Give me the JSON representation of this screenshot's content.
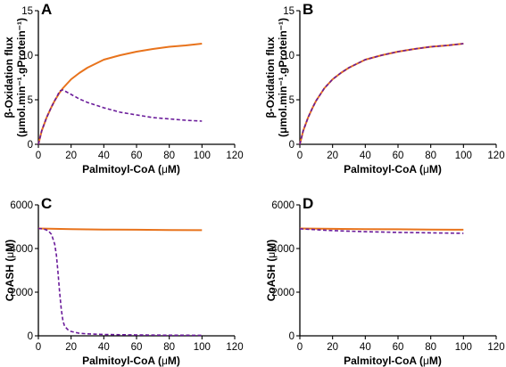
{
  "colors": {
    "orange": "#e8731c",
    "purple": "#6a1b9a",
    "axis": "#000000"
  },
  "chart_data": [
    {
      "panel": "A",
      "type": "line",
      "xlabel_parts": [
        "Palmitoyl-CoA (",
        "μ",
        "M)"
      ],
      "ylabel_line1": "β-Oxidation flux",
      "ylabel_line2": "(μmol.min⁻¹.gProtein⁻¹)",
      "xlim": [
        0,
        120
      ],
      "ylim": [
        0,
        15
      ],
      "xticks": [
        0,
        20,
        40,
        60,
        80,
        100,
        120
      ],
      "yticks": [
        0,
        5,
        10,
        15
      ],
      "series": [
        {
          "color": "#e8731c",
          "dashed": false,
          "x": [
            0,
            2,
            5,
            8,
            10,
            13,
            15,
            20,
            25,
            30,
            40,
            50,
            60,
            70,
            80,
            90,
            100
          ],
          "y": [
            0,
            1.5,
            3.0,
            4.2,
            4.9,
            5.8,
            6.3,
            7.3,
            8.0,
            8.6,
            9.5,
            10.0,
            10.4,
            10.7,
            10.95,
            11.1,
            11.3
          ]
        },
        {
          "color": "#6a1b9a",
          "dashed": true,
          "x": [
            0,
            2,
            5,
            8,
            10,
            12,
            13,
            15,
            17,
            20,
            25,
            30,
            40,
            50,
            60,
            70,
            80,
            90,
            100
          ],
          "y": [
            0,
            1.5,
            3.0,
            4.2,
            4.9,
            5.6,
            6.0,
            6.1,
            5.9,
            5.6,
            5.1,
            4.7,
            4.1,
            3.6,
            3.3,
            3.0,
            2.85,
            2.7,
            2.6
          ]
        }
      ]
    },
    {
      "panel": "B",
      "type": "line",
      "xlabel_parts": [
        "Palmitoyl-CoA (",
        "μ",
        "M)"
      ],
      "ylabel_line1": "β-Oxidation flux",
      "ylabel_line2": "(μmol.min⁻¹.gProtein⁻¹)",
      "xlim": [
        0,
        120
      ],
      "ylim": [
        0,
        15
      ],
      "xticks": [
        0,
        20,
        40,
        60,
        80,
        100,
        120
      ],
      "yticks": [
        0,
        5,
        10,
        15
      ],
      "series": [
        {
          "color": "#e8731c",
          "dashed": false,
          "x": [
            0,
            2,
            5,
            8,
            10,
            15,
            20,
            25,
            30,
            40,
            50,
            60,
            70,
            80,
            90,
            100
          ],
          "y": [
            0,
            1.5,
            3.0,
            4.2,
            4.9,
            6.3,
            7.3,
            8.0,
            8.6,
            9.5,
            10.0,
            10.4,
            10.7,
            10.95,
            11.1,
            11.3
          ]
        },
        {
          "color": "#6a1b9a",
          "dashed": true,
          "x": [
            0,
            2,
            5,
            8,
            10,
            15,
            20,
            25,
            30,
            40,
            50,
            60,
            70,
            80,
            90,
            100
          ],
          "y": [
            0,
            1.5,
            3.0,
            4.2,
            4.9,
            6.3,
            7.3,
            8.0,
            8.6,
            9.5,
            10.0,
            10.4,
            10.7,
            10.95,
            11.1,
            11.3
          ]
        }
      ]
    },
    {
      "panel": "C",
      "type": "line",
      "xlabel_parts": [
        "Palmitoyl-CoA (",
        "μ",
        "M)"
      ],
      "ylabel_parts": [
        "CoASH (",
        "μ",
        "M)"
      ],
      "xlim": [
        0,
        120
      ],
      "ylim": [
        0,
        6000
      ],
      "xticks": [
        0,
        20,
        40,
        60,
        80,
        100,
        120
      ],
      "yticks": [
        0,
        2000,
        4000,
        6000
      ],
      "series": [
        {
          "color": "#e8731c",
          "dashed": false,
          "x": [
            0,
            20,
            40,
            60,
            80,
            100
          ],
          "y": [
            4920,
            4890,
            4870,
            4860,
            4850,
            4840
          ]
        },
        {
          "color": "#6a1b9a",
          "dashed": true,
          "x": [
            0,
            3,
            6,
            8,
            10,
            11,
            12,
            13,
            14,
            15,
            16,
            18,
            20,
            25,
            30,
            40,
            60,
            80,
            100
          ],
          "y": [
            4920,
            4900,
            4820,
            4650,
            4200,
            3700,
            2900,
            2000,
            1200,
            700,
            450,
            280,
            200,
            120,
            90,
            60,
            40,
            30,
            25
          ]
        }
      ]
    },
    {
      "panel": "D",
      "type": "line",
      "xlabel_parts": [
        "Palmitoyl-CoA (",
        "μ",
        "M)"
      ],
      "ylabel_parts": [
        "CoASH (",
        "μ",
        "M)"
      ],
      "xlim": [
        0,
        120
      ],
      "ylim": [
        0,
        6000
      ],
      "xticks": [
        0,
        20,
        40,
        60,
        80,
        100,
        120
      ],
      "yticks": [
        0,
        2000,
        4000,
        6000
      ],
      "series": [
        {
          "color": "#e8731c",
          "dashed": false,
          "x": [
            0,
            20,
            40,
            60,
            80,
            100
          ],
          "y": [
            4920,
            4900,
            4890,
            4880,
            4870,
            4860
          ]
        },
        {
          "color": "#6a1b9a",
          "dashed": true,
          "x": [
            0,
            20,
            40,
            60,
            80,
            100
          ],
          "y": [
            4900,
            4820,
            4770,
            4740,
            4720,
            4700
          ]
        }
      ]
    }
  ]
}
